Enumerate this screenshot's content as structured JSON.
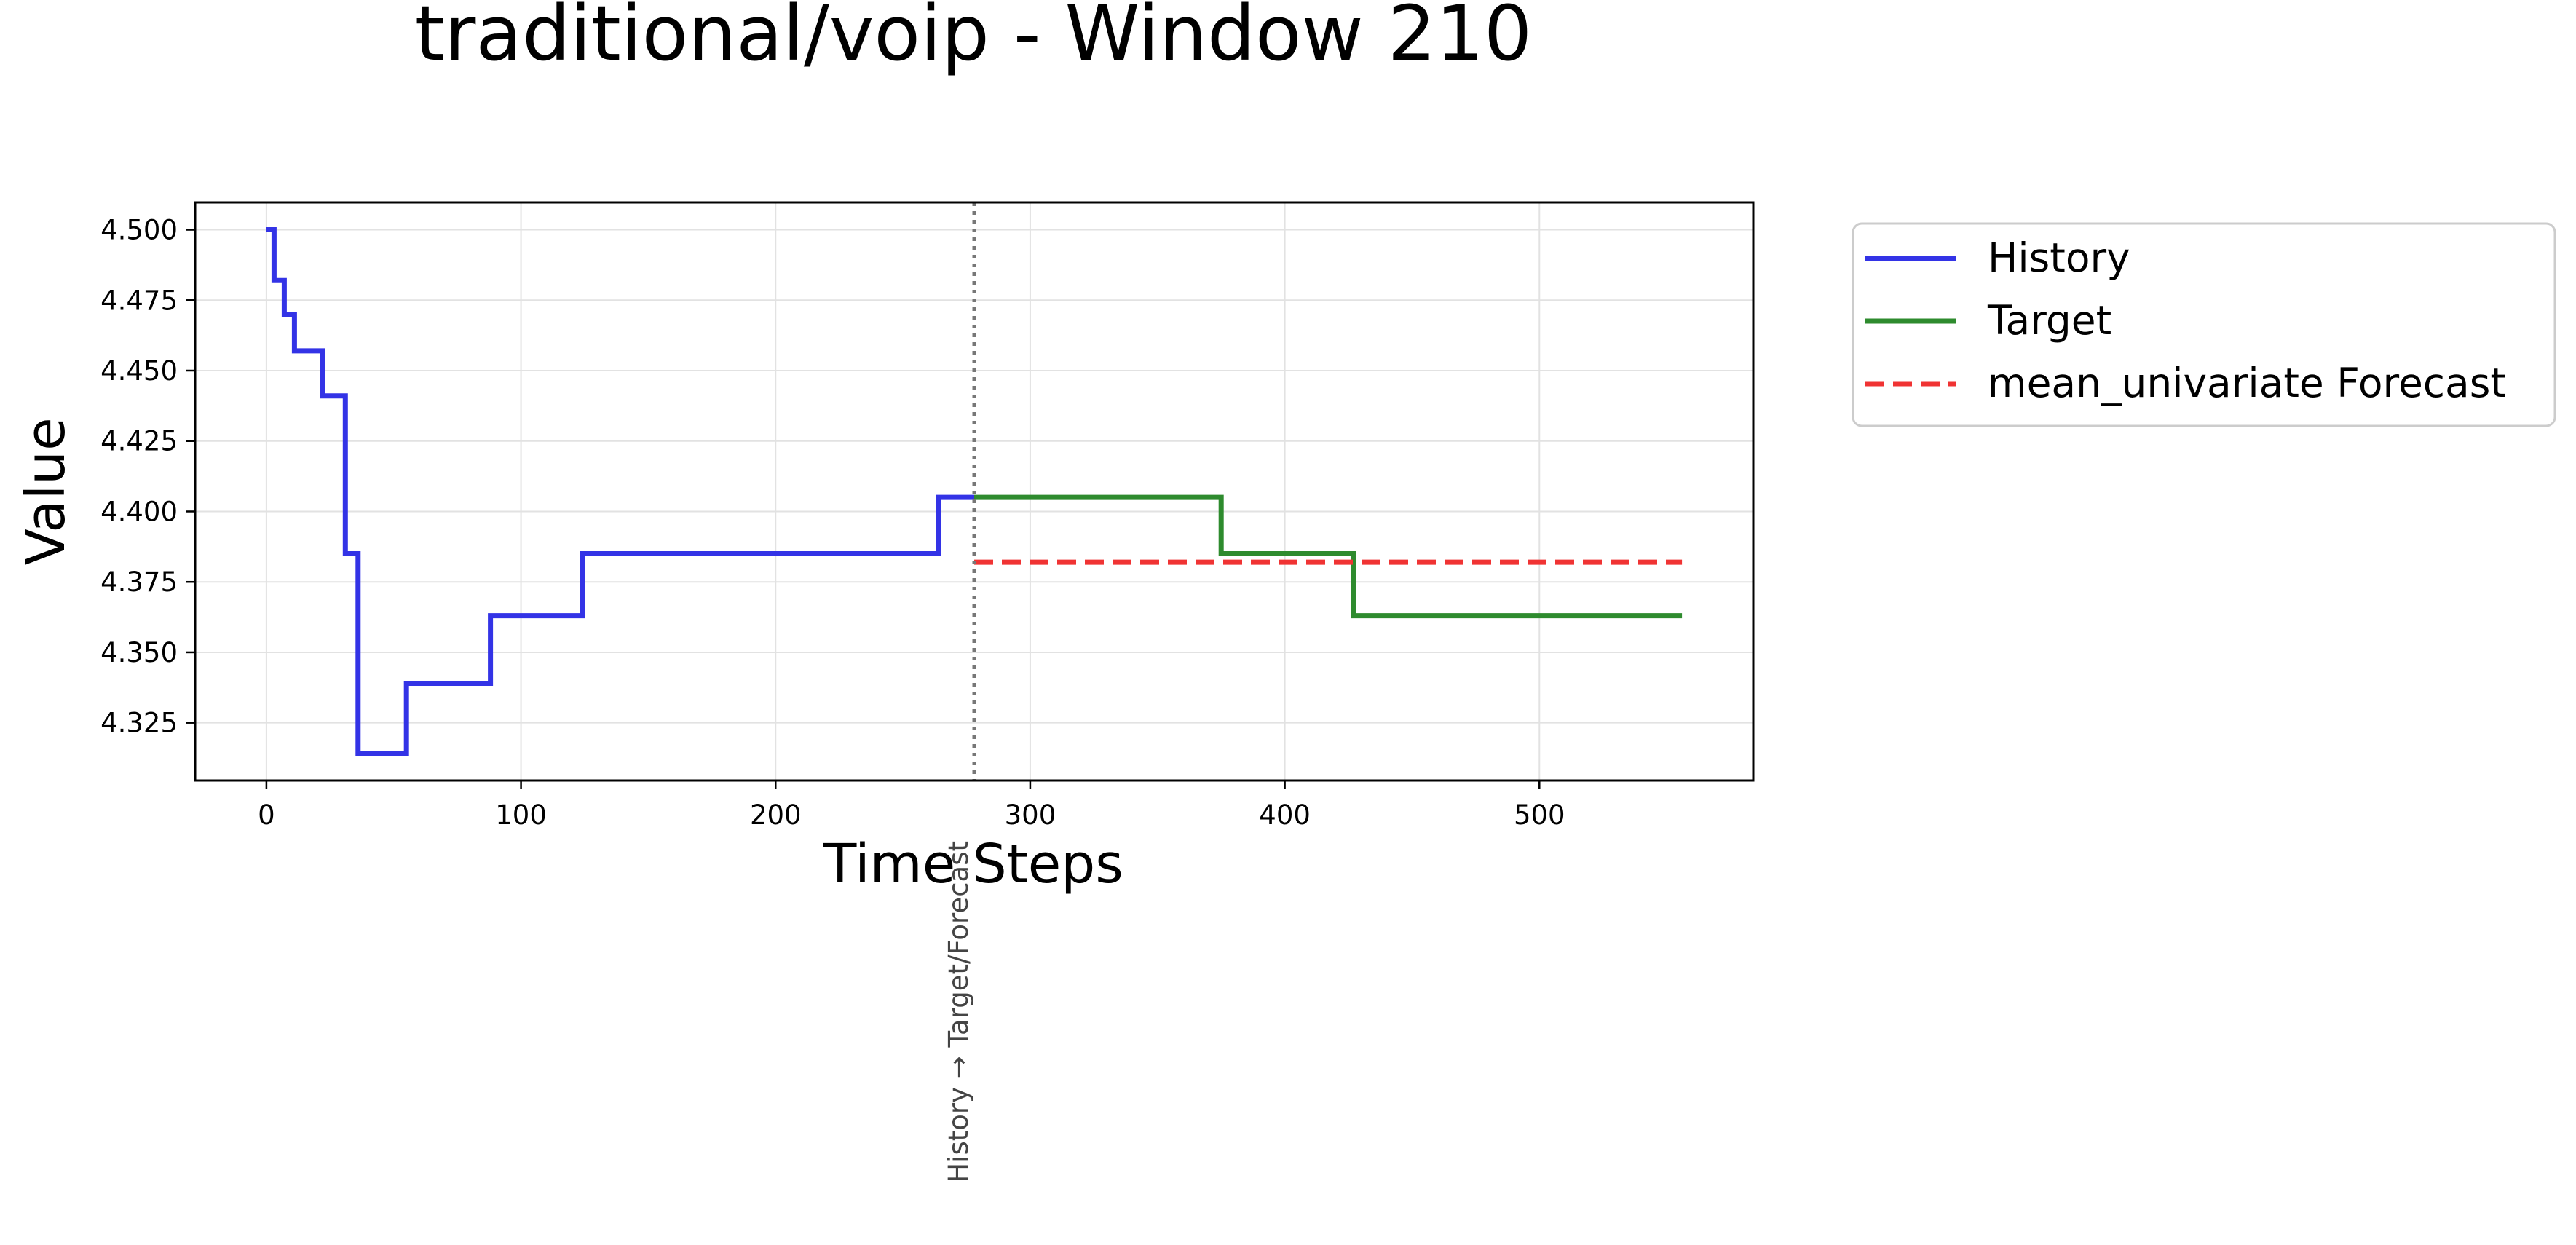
{
  "chart_data": {
    "type": "line",
    "title": "traditional/voip - Window 210",
    "xlabel": "Time Steps",
    "ylabel": "Value",
    "xlim": [
      -28,
      584
    ],
    "ylim": [
      4.3045,
      4.5097
    ],
    "xticks": [
      0,
      100,
      200,
      300,
      400,
      500
    ],
    "yticks": [
      4.325,
      4.35,
      4.375,
      4.4,
      4.425,
      4.45,
      4.475,
      4.5
    ],
    "ytick_labels": [
      "4.325",
      "4.350",
      "4.375",
      "4.400",
      "4.425",
      "4.450",
      "4.475",
      "4.500"
    ],
    "grid": true,
    "legend_placement": "outside upper right",
    "divider": {
      "x": 278,
      "label": "History → Target/Forecast",
      "color": "#777777"
    },
    "series": [
      {
        "name": "History",
        "color": "#3333e6",
        "dash": "solid",
        "points": [
          [
            0,
            4.5
          ],
          [
            3,
            4.5
          ],
          [
            3,
            4.482
          ],
          [
            7,
            4.482
          ],
          [
            7,
            4.47
          ],
          [
            11,
            4.47
          ],
          [
            11,
            4.457
          ],
          [
            22,
            4.457
          ],
          [
            22,
            4.441
          ],
          [
            31,
            4.441
          ],
          [
            31,
            4.385
          ],
          [
            36,
            4.385
          ],
          [
            36,
            4.314
          ],
          [
            55,
            4.314
          ],
          [
            55,
            4.339
          ],
          [
            88,
            4.339
          ],
          [
            88,
            4.363
          ],
          [
            124,
            4.363
          ],
          [
            124,
            4.385
          ],
          [
            264,
            4.385
          ],
          [
            264,
            4.405
          ],
          [
            278,
            4.405
          ]
        ]
      },
      {
        "name": "Target",
        "color": "#2e8b2e",
        "dash": "solid",
        "points": [
          [
            278,
            4.405
          ],
          [
            375,
            4.405
          ],
          [
            375,
            4.385
          ],
          [
            427,
            4.385
          ],
          [
            427,
            4.363
          ],
          [
            556,
            4.363
          ]
        ]
      },
      {
        "name": "mean_univariate Forecast",
        "color": "#f03333",
        "dash": "dashed",
        "points": [
          [
            278,
            4.382
          ],
          [
            556,
            4.382
          ]
        ]
      }
    ]
  }
}
